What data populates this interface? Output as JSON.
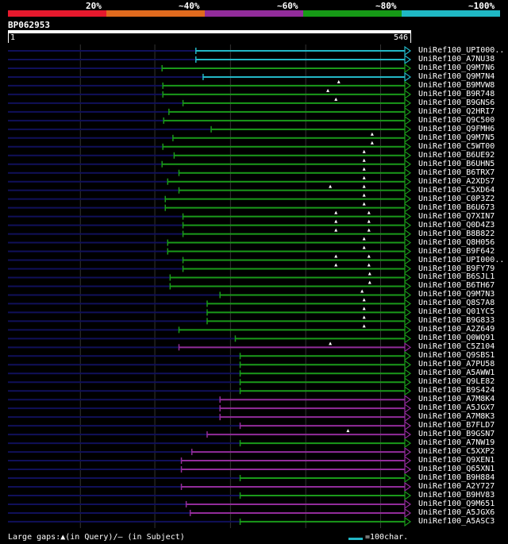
{
  "legend": {
    "items": [
      {
        "label": "20%",
        "color": "#e6192d"
      },
      {
        "label": "~40%",
        "color": "#e06a1e"
      },
      {
        "label": "~60%",
        "color": "#922c9b"
      },
      {
        "label": "~80%",
        "color": "#169a16"
      },
      {
        "label": "~100%",
        "color": "#1fb8c4"
      }
    ]
  },
  "query": {
    "title": "BP062953",
    "length_start": "1",
    "length_end": "546",
    "length": 546
  },
  "colors": {
    "background": "#000000",
    "gap_line": "#10105a",
    "grid": "#333333",
    "cyan": "#23b7c6",
    "green": "#1a9a1a",
    "purple": "#922c9b"
  },
  "hits": [
    {
      "name": "UniRef100_UPI000..",
      "start": 0.467,
      "color": "cyan"
    },
    {
      "name": "UniRef100_A7NU38",
      "start": 0.467,
      "color": "cyan"
    },
    {
      "name": "UniRef100_Q9M7N6",
      "start": 0.383,
      "color": "green"
    },
    {
      "name": "UniRef100_Q9M7N4",
      "start": 0.485,
      "color": "cyan"
    },
    {
      "name": "UniRef100_B9MVW8",
      "start": 0.385,
      "color": "green",
      "marks": [
        0.822
      ]
    },
    {
      "name": "UniRef100_B9R748",
      "start": 0.385,
      "color": "green",
      "marks": [
        0.795
      ]
    },
    {
      "name": "UniRef100_B9GNS6",
      "start": 0.435,
      "color": "green",
      "marks": [
        0.815
      ]
    },
    {
      "name": "UniRef100_Q2HRI7",
      "start": 0.4,
      "color": "green"
    },
    {
      "name": "UniRef100_Q9C500",
      "start": 0.387,
      "color": "green"
    },
    {
      "name": "UniRef100_Q9FMH6",
      "start": 0.505,
      "color": "green"
    },
    {
      "name": "UniRef100_Q9M7N5",
      "start": 0.41,
      "color": "green",
      "marks": [
        0.905
      ]
    },
    {
      "name": "UniRef100_C5WT00",
      "start": 0.385,
      "color": "green",
      "marks": [
        0.905
      ]
    },
    {
      "name": "UniRef100_B6UE92",
      "start": 0.413,
      "color": "green",
      "marks": [
        0.885
      ]
    },
    {
      "name": "UniRef100_B6UHN5",
      "start": 0.383,
      "color": "green",
      "marks": [
        0.885
      ]
    },
    {
      "name": "UniRef100_B6TRX7",
      "start": 0.425,
      "color": "green",
      "marks": [
        0.885
      ]
    },
    {
      "name": "UniRef100_A2XDS7",
      "start": 0.397,
      "color": "green",
      "marks": [
        0.885
      ]
    },
    {
      "name": "UniRef100_C5XD64",
      "start": 0.425,
      "color": "green",
      "marks": [
        0.801,
        0.885
      ]
    },
    {
      "name": "UniRef100_C0P3Z2",
      "start": 0.391,
      "color": "green",
      "marks": [
        0.885
      ]
    },
    {
      "name": "UniRef100_B6U673",
      "start": 0.391,
      "color": "green",
      "marks": [
        0.885
      ]
    },
    {
      "name": "UniRef100_Q7XIN7",
      "start": 0.435,
      "color": "green",
      "marks": [
        0.815,
        0.897
      ]
    },
    {
      "name": "UniRef100_Q0D4Z3",
      "start": 0.435,
      "color": "green",
      "marks": [
        0.815,
        0.897
      ]
    },
    {
      "name": "UniRef100_B8B822",
      "start": 0.435,
      "color": "green",
      "marks": [
        0.815,
        0.897
      ]
    },
    {
      "name": "UniRef100_Q8H056",
      "start": 0.397,
      "color": "green",
      "marks": [
        0.885
      ]
    },
    {
      "name": "UniRef100_B9F642",
      "start": 0.397,
      "color": "green",
      "marks": [
        0.885
      ]
    },
    {
      "name": "UniRef100_UPI000..",
      "start": 0.435,
      "color": "green",
      "marks": [
        0.815,
        0.897
      ]
    },
    {
      "name": "UniRef100_B9FY79",
      "start": 0.435,
      "color": "green",
      "marks": [
        0.815,
        0.897
      ]
    },
    {
      "name": "UniRef100_B6SJL1",
      "start": 0.403,
      "color": "green",
      "marks": [
        0.899
      ]
    },
    {
      "name": "UniRef100_B6TH67",
      "start": 0.403,
      "color": "green",
      "marks": [
        0.899
      ]
    },
    {
      "name": "UniRef100_Q9M7N3",
      "start": 0.527,
      "color": "green",
      "marks": [
        0.88
      ]
    },
    {
      "name": "UniRef100_Q8S7A8",
      "start": 0.495,
      "color": "green",
      "marks": [
        0.885
      ]
    },
    {
      "name": "UniRef100_Q01YC5",
      "start": 0.495,
      "color": "green",
      "marks": [
        0.885
      ]
    },
    {
      "name": "UniRef100_B9G833",
      "start": 0.495,
      "color": "green",
      "marks": [
        0.885
      ]
    },
    {
      "name": "UniRef100_A2Z649",
      "start": 0.425,
      "color": "green",
      "marks": [
        0.885
      ]
    },
    {
      "name": "UniRef100_Q0WQ91",
      "start": 0.565,
      "color": "green"
    },
    {
      "name": "UniRef100_C5Z104",
      "start": 0.425,
      "color": "purple",
      "marks": [
        0.801
      ]
    },
    {
      "name": "UniRef100_Q9SBS1",
      "start": 0.577,
      "color": "green"
    },
    {
      "name": "UniRef100_A7PU58",
      "start": 0.577,
      "color": "green"
    },
    {
      "name": "UniRef100_A5AWW1",
      "start": 0.577,
      "color": "green"
    },
    {
      "name": "UniRef100_Q9LE82",
      "start": 0.577,
      "color": "green"
    },
    {
      "name": "UniRef100_B9S424",
      "start": 0.577,
      "color": "green"
    },
    {
      "name": "UniRef100_A7M8K4",
      "start": 0.527,
      "color": "purple"
    },
    {
      "name": "UniRef100_A5JGX7",
      "start": 0.527,
      "color": "purple"
    },
    {
      "name": "UniRef100_A7M8K3",
      "start": 0.527,
      "color": "purple"
    },
    {
      "name": "UniRef100_B7FLD7",
      "start": 0.577,
      "color": "purple"
    },
    {
      "name": "UniRef100_B9GSN7",
      "start": 0.495,
      "color": "purple",
      "marks": [
        0.845
      ]
    },
    {
      "name": "UniRef100_A7NW19",
      "start": 0.577,
      "color": "green"
    },
    {
      "name": "UniRef100_C5XXP2",
      "start": 0.457,
      "color": "purple"
    },
    {
      "name": "UniRef100_Q9XEN1",
      "start": 0.431,
      "color": "purple"
    },
    {
      "name": "UniRef100_Q65XN1",
      "start": 0.431,
      "color": "purple"
    },
    {
      "name": "UniRef100_B9H884",
      "start": 0.577,
      "color": "green"
    },
    {
      "name": "UniRef100_A2Y727",
      "start": 0.431,
      "color": "purple"
    },
    {
      "name": "UniRef100_B9HV83",
      "start": 0.577,
      "color": "green"
    },
    {
      "name": "UniRef100_Q9M651",
      "start": 0.443,
      "color": "purple"
    },
    {
      "name": "UniRef100_A5JGX6",
      "start": 0.453,
      "color": "purple"
    },
    {
      "name": "UniRef100_A5ASC3",
      "start": 0.577,
      "color": "green"
    }
  ],
  "footer": {
    "text": "Large gaps:▲(in Query)/– (in Subject)",
    "scale_text": "=100char."
  }
}
